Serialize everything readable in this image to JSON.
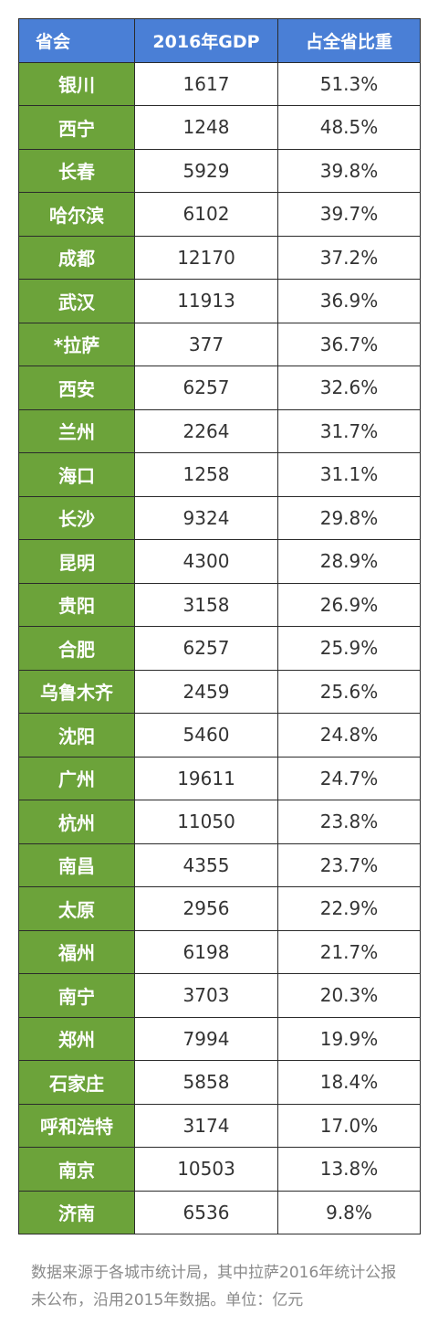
{
  "table": {
    "headers": [
      "省会",
      "2016年GDP",
      "占全省比重"
    ],
    "rows": [
      [
        "银川",
        "1617",
        "51.3%"
      ],
      [
        "西宁",
        "1248",
        "48.5%"
      ],
      [
        "长春",
        "5929",
        "39.8%"
      ],
      [
        "哈尔滨",
        "6102",
        "39.7%"
      ],
      [
        "成都",
        "12170",
        "37.2%"
      ],
      [
        "武汉",
        "11913",
        "36.9%"
      ],
      [
        "*拉萨",
        "377",
        "36.7%"
      ],
      [
        "西安",
        "6257",
        "32.6%"
      ],
      [
        "兰州",
        "2264",
        "31.7%"
      ],
      [
        "海口",
        "1258",
        "31.1%"
      ],
      [
        "长沙",
        "9324",
        "29.8%"
      ],
      [
        "昆明",
        "4300",
        "28.9%"
      ],
      [
        "贵阳",
        "3158",
        "26.9%"
      ],
      [
        "合肥",
        "6257",
        "25.9%"
      ],
      [
        "乌鲁木齐",
        "2459",
        "25.6%"
      ],
      [
        "沈阳",
        "5460",
        "24.8%"
      ],
      [
        "广州",
        "19611",
        "24.7%"
      ],
      [
        "杭州",
        "11050",
        "23.8%"
      ],
      [
        "南昌",
        "4355",
        "23.7%"
      ],
      [
        "太原",
        "2956",
        "22.9%"
      ],
      [
        "福州",
        "6198",
        "21.7%"
      ],
      [
        "南宁",
        "3703",
        "20.3%"
      ],
      [
        "郑州",
        "7994",
        "19.9%"
      ],
      [
        "石家庄",
        "5858",
        "18.4%"
      ],
      [
        "呼和浩特",
        "3174",
        "17.0%"
      ],
      [
        "南京",
        "10503",
        "13.8%"
      ],
      [
        "济南",
        "6536",
        "9.8%"
      ]
    ]
  },
  "footnote": "数据来源于各城市统计局，其中拉萨2016年统计公报未公布，沿用2015年数据。单位：亿元",
  "colors": {
    "header_bg": "#4a7fd6",
    "city_bg": "#6ca33a",
    "border": "#2b2b2b",
    "footnote_text": "#8a8a8a"
  }
}
